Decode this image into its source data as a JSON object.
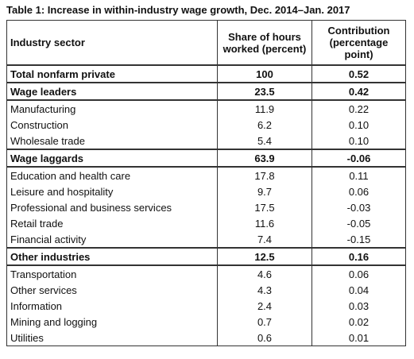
{
  "title": "Table 1: Increase in within-industry wage growth, Dec. 2014–Jan. 2017",
  "table": {
    "columns": [
      "Industry sector",
      "Share of hours worked (percent)",
      "Contribution (percentage point)"
    ],
    "rows": [
      {
        "cells": [
          "Total nonfarm private",
          "100",
          "0.52"
        ],
        "bold": true
      },
      {
        "cells": [
          "Wage leaders",
          "23.5",
          "0.42"
        ],
        "bold": true
      },
      {
        "cells": [
          "Manufacturing",
          "11.9",
          "0.22"
        ],
        "bold": false
      },
      {
        "cells": [
          "Construction",
          "6.2",
          "0.10"
        ],
        "bold": false
      },
      {
        "cells": [
          "Wholesale trade",
          "5.4",
          "0.10"
        ],
        "bold": false
      },
      {
        "cells": [
          "Wage laggards",
          "63.9",
          "-0.06"
        ],
        "bold": true
      },
      {
        "cells": [
          "Education and health care",
          "17.8",
          "0.11"
        ],
        "bold": false
      },
      {
        "cells": [
          "Leisure and hospitality",
          "9.7",
          "0.06"
        ],
        "bold": false
      },
      {
        "cells": [
          "Professional and business services",
          "17.5",
          "-0.03"
        ],
        "bold": false
      },
      {
        "cells": [
          "Retail trade",
          "11.6",
          "-0.05"
        ],
        "bold": false
      },
      {
        "cells": [
          "Financial activity",
          "7.4",
          "-0.15"
        ],
        "bold": false
      },
      {
        "cells": [
          "Other industries",
          "12.5",
          "0.16"
        ],
        "bold": true
      },
      {
        "cells": [
          "Transportation",
          "4.6",
          "0.06"
        ],
        "bold": false
      },
      {
        "cells": [
          "Other services",
          "4.3",
          "0.04"
        ],
        "bold": false
      },
      {
        "cells": [
          "Information",
          "2.4",
          "0.03"
        ],
        "bold": false
      },
      {
        "cells": [
          "Mining and logging",
          "0.7",
          "0.02"
        ],
        "bold": false
      },
      {
        "cells": [
          "Utilities",
          "0.6",
          "0.01"
        ],
        "bold": false
      }
    ]
  }
}
